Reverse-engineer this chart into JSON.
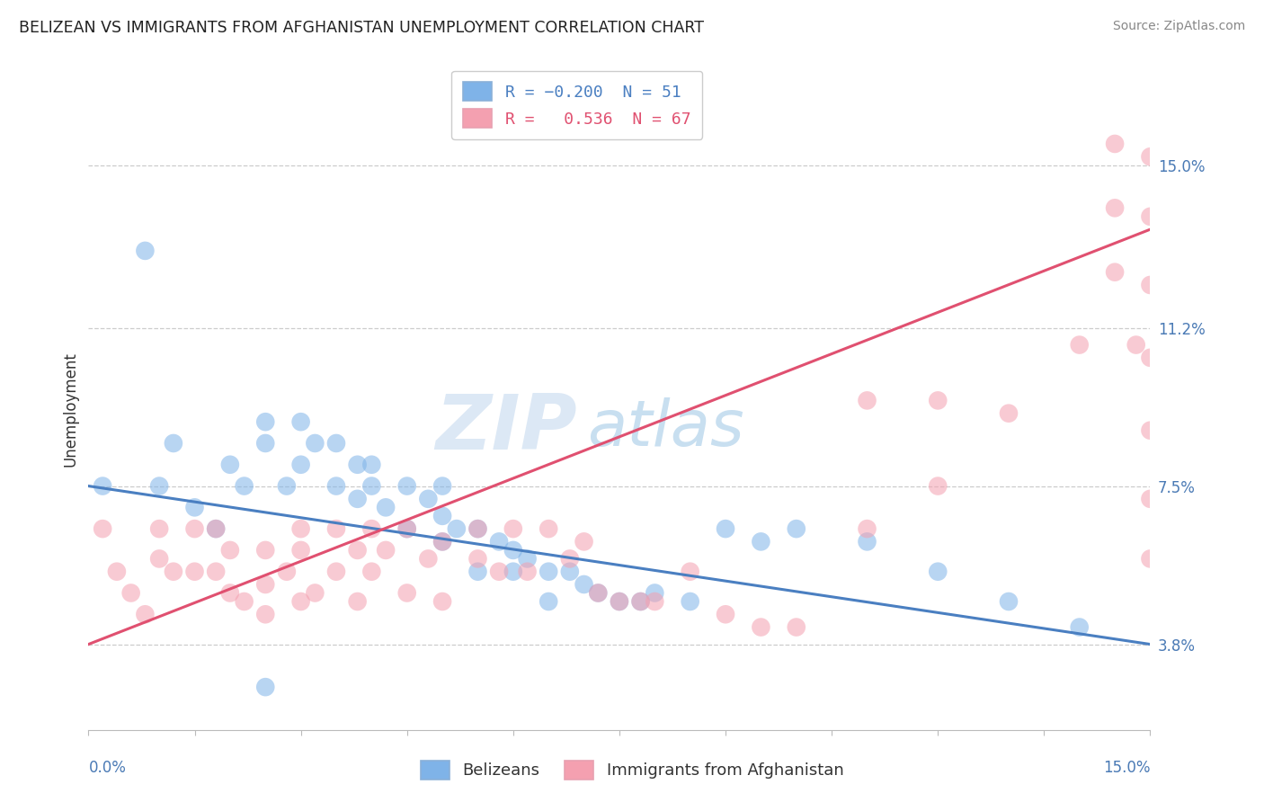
{
  "title": "BELIZEAN VS IMMIGRANTS FROM AFGHANISTAN UNEMPLOYMENT CORRELATION CHART",
  "source": "Source: ZipAtlas.com",
  "ylabel": "Unemployment",
  "ytick_labels": [
    "3.8%",
    "7.5%",
    "11.2%",
    "15.0%"
  ],
  "ytick_values": [
    0.038,
    0.075,
    0.112,
    0.15
  ],
  "xlim": [
    0.0,
    0.15
  ],
  "ylim": [
    0.018,
    0.168
  ],
  "blue_color": "#7fb3e8",
  "pink_color": "#f4a0b0",
  "blue_trend_color": "#4a7fc1",
  "pink_trend_color": "#e05070",
  "watermark_zip": "ZIP",
  "watermark_atlas": "atlas",
  "blue_trend_y_start": 0.075,
  "blue_trend_y_end": 0.038,
  "pink_trend_y_start": 0.038,
  "pink_trend_y_end": 0.135,
  "blue_scatter_x": [
    0.002,
    0.008,
    0.01,
    0.012,
    0.015,
    0.018,
    0.02,
    0.022,
    0.025,
    0.025,
    0.028,
    0.03,
    0.03,
    0.032,
    0.035,
    0.035,
    0.038,
    0.038,
    0.04,
    0.04,
    0.042,
    0.045,
    0.045,
    0.048,
    0.05,
    0.05,
    0.05,
    0.052,
    0.055,
    0.055,
    0.058,
    0.06,
    0.06,
    0.062,
    0.065,
    0.065,
    0.068,
    0.07,
    0.072,
    0.075,
    0.078,
    0.08,
    0.085,
    0.09,
    0.095,
    0.1,
    0.11,
    0.12,
    0.13,
    0.14,
    0.025
  ],
  "blue_scatter_y": [
    0.075,
    0.13,
    0.075,
    0.085,
    0.07,
    0.065,
    0.08,
    0.075,
    0.09,
    0.085,
    0.075,
    0.09,
    0.08,
    0.085,
    0.085,
    0.075,
    0.08,
    0.072,
    0.08,
    0.075,
    0.07,
    0.075,
    0.065,
    0.072,
    0.075,
    0.068,
    0.062,
    0.065,
    0.065,
    0.055,
    0.062,
    0.06,
    0.055,
    0.058,
    0.055,
    0.048,
    0.055,
    0.052,
    0.05,
    0.048,
    0.048,
    0.05,
    0.048,
    0.065,
    0.062,
    0.065,
    0.062,
    0.055,
    0.048,
    0.042,
    0.028
  ],
  "pink_scatter_x": [
    0.002,
    0.004,
    0.006,
    0.008,
    0.01,
    0.01,
    0.012,
    0.015,
    0.015,
    0.018,
    0.018,
    0.02,
    0.02,
    0.022,
    0.025,
    0.025,
    0.025,
    0.028,
    0.03,
    0.03,
    0.03,
    0.032,
    0.035,
    0.035,
    0.038,
    0.038,
    0.04,
    0.04,
    0.042,
    0.045,
    0.045,
    0.048,
    0.05,
    0.05,
    0.055,
    0.055,
    0.058,
    0.06,
    0.062,
    0.065,
    0.068,
    0.07,
    0.072,
    0.075,
    0.078,
    0.08,
    0.085,
    0.09,
    0.095,
    0.1,
    0.11,
    0.11,
    0.12,
    0.12,
    0.13,
    0.14,
    0.145,
    0.145,
    0.145,
    0.148,
    0.15,
    0.15,
    0.15,
    0.15,
    0.15,
    0.15,
    0.15
  ],
  "pink_scatter_y": [
    0.065,
    0.055,
    0.05,
    0.045,
    0.065,
    0.058,
    0.055,
    0.065,
    0.055,
    0.065,
    0.055,
    0.06,
    0.05,
    0.048,
    0.06,
    0.052,
    0.045,
    0.055,
    0.065,
    0.06,
    0.048,
    0.05,
    0.065,
    0.055,
    0.06,
    0.048,
    0.065,
    0.055,
    0.06,
    0.065,
    0.05,
    0.058,
    0.062,
    0.048,
    0.065,
    0.058,
    0.055,
    0.065,
    0.055,
    0.065,
    0.058,
    0.062,
    0.05,
    0.048,
    0.048,
    0.048,
    0.055,
    0.045,
    0.042,
    0.042,
    0.095,
    0.065,
    0.095,
    0.075,
    0.092,
    0.108,
    0.155,
    0.14,
    0.125,
    0.108,
    0.152,
    0.138,
    0.122,
    0.105,
    0.088,
    0.072,
    0.058
  ]
}
